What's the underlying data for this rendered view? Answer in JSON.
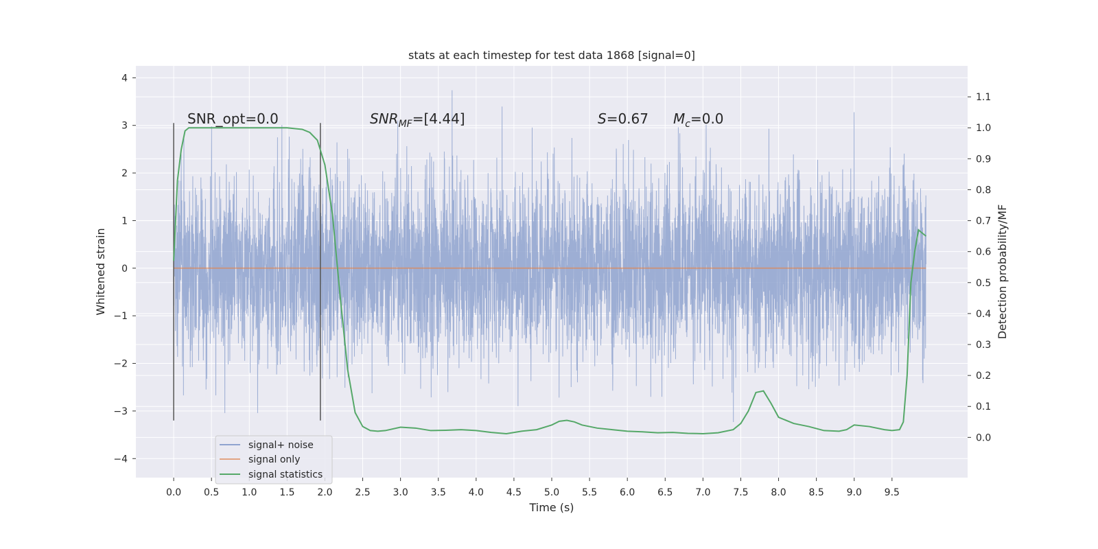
{
  "chart_data": {
    "type": "line",
    "title": "stats at each timestep for test data 1868 [signal=0]",
    "xlabel": "Time (s)",
    "ylabel": "Whitened strain",
    "ylabel_right": "Detection probability/MF",
    "xlim": [
      -0.5,
      10.5
    ],
    "ylim": [
      -4.4,
      4.25
    ],
    "ylim_right": [
      -0.13,
      1.2
    ],
    "x_ticks": [
      "0.0",
      "0.5",
      "1.0",
      "1.5",
      "2.0",
      "2.5",
      "3.0",
      "3.5",
      "4.0",
      "4.5",
      "5.0",
      "5.5",
      "6.0",
      "6.5",
      "7.0",
      "7.5",
      "8.0",
      "8.5",
      "9.0",
      "9.5"
    ],
    "y_ticks_left": [
      "−4",
      "−3",
      "−2",
      "−1",
      "0",
      "1",
      "2",
      "3",
      "4"
    ],
    "y_ticks_right": [
      "0.0",
      "0.1",
      "0.2",
      "0.3",
      "0.4",
      "0.5",
      "0.6",
      "0.7",
      "0.8",
      "0.9",
      "1.0",
      "1.1"
    ],
    "grid": true,
    "legend_position": "lower-left",
    "annotations": {
      "snr_opt": "SNR_opt=0.0",
      "snr_mf_main": "SNR",
      "snr_mf_sub": "MF",
      "snr_mf_value": "=[4.44]",
      "s_italic": "S",
      "s_value": "=0.67",
      "mc_main": "M",
      "mc_sub": "c",
      "mc_value": "=0.0"
    },
    "vertical_markers_x": [
      0.0,
      1.94
    ],
    "series": [
      {
        "name": "signal+ noise",
        "axis": "left",
        "color": "#8fa3cf",
        "description_envelope": {
          "x_range": [
            0.0,
            9.95
          ],
          "typical_abs_max": 1.8,
          "peak_max": 3.9,
          "peak_min": -4.05
        }
      },
      {
        "name": "signal only",
        "axis": "left",
        "color": "#dd8452",
        "x": [
          0.0,
          9.95
        ],
        "y": [
          0.0,
          0.0
        ]
      },
      {
        "name": "signal statistics",
        "axis": "right",
        "color": "#55a868",
        "x": [
          0.0,
          0.05,
          0.1,
          0.15,
          0.2,
          0.3,
          0.5,
          1.0,
          1.5,
          1.7,
          1.8,
          1.9,
          2.0,
          2.1,
          2.2,
          2.3,
          2.4,
          2.5,
          2.6,
          2.7,
          2.8,
          3.0,
          3.2,
          3.4,
          3.6,
          3.8,
          4.0,
          4.2,
          4.4,
          4.6,
          4.8,
          5.0,
          5.1,
          5.2,
          5.3,
          5.4,
          5.6,
          5.8,
          6.0,
          6.2,
          6.4,
          6.6,
          6.8,
          7.0,
          7.2,
          7.4,
          7.5,
          7.6,
          7.7,
          7.8,
          7.9,
          8.0,
          8.2,
          8.4,
          8.6,
          8.8,
          8.9,
          9.0,
          9.2,
          9.4,
          9.5,
          9.6,
          9.65,
          9.7,
          9.75,
          9.8,
          9.85,
          9.9,
          9.95
        ],
        "y": [
          0.57,
          0.83,
          0.93,
          0.99,
          1.0,
          1.0,
          1.0,
          1.0,
          1.0,
          0.995,
          0.985,
          0.96,
          0.88,
          0.72,
          0.46,
          0.22,
          0.08,
          0.035,
          0.022,
          0.02,
          0.022,
          0.033,
          0.03,
          0.022,
          0.023,
          0.025,
          0.022,
          0.016,
          0.012,
          0.02,
          0.025,
          0.04,
          0.052,
          0.055,
          0.05,
          0.04,
          0.03,
          0.025,
          0.02,
          0.018,
          0.015,
          0.016,
          0.013,
          0.012,
          0.015,
          0.025,
          0.045,
          0.085,
          0.145,
          0.15,
          0.11,
          0.065,
          0.045,
          0.035,
          0.022,
          0.02,
          0.025,
          0.04,
          0.035,
          0.025,
          0.022,
          0.025,
          0.05,
          0.2,
          0.5,
          0.6,
          0.67,
          0.66,
          0.65
        ]
      }
    ]
  }
}
